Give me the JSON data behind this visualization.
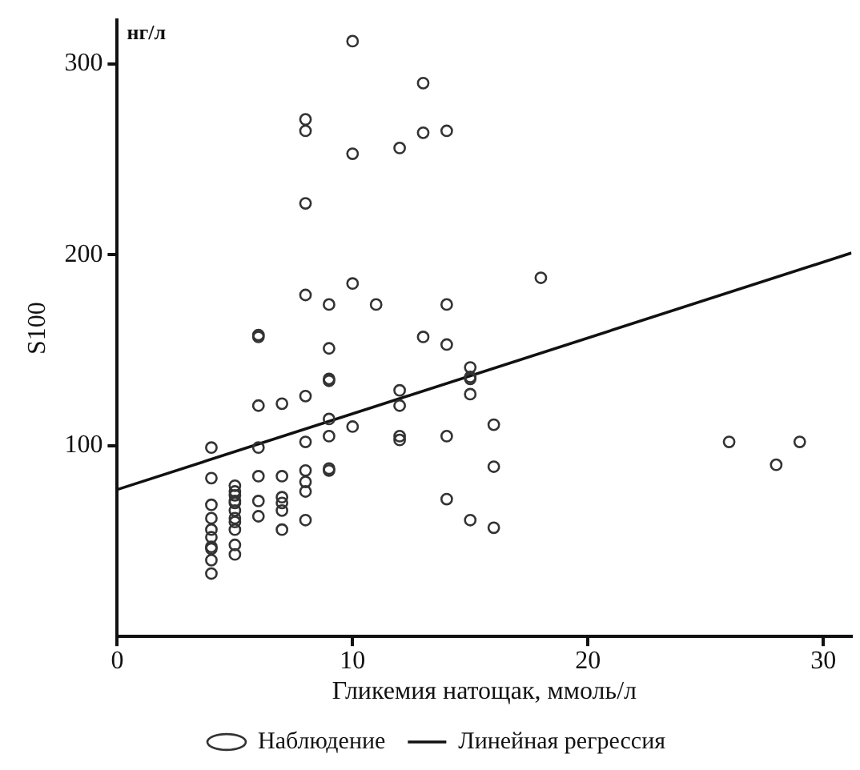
{
  "chart_data": {
    "type": "scatter",
    "xlabel": "Гликемия натощак, ммоль/л",
    "ylabel": "S100",
    "annotations": [
      "нг/л"
    ],
    "xlim": [
      0,
      31.2
    ],
    "xticks": [
      0,
      10,
      20,
      30
    ],
    "ylim": [
      0,
      323
    ],
    "yticks": [
      100,
      200,
      300
    ],
    "grid": false,
    "legend": "bottom",
    "line_style": "solid",
    "series": [
      {
        "name": "Наблюдение",
        "type": "scatter",
        "marker": "circle",
        "color": "#333333",
        "x": [
          10,
          13,
          8,
          8,
          13,
          10,
          12,
          8,
          8,
          9,
          10,
          11,
          6,
          6,
          9,
          13,
          14,
          18,
          14,
          14,
          15,
          15,
          15,
          15,
          16,
          14,
          16,
          14,
          15,
          16,
          26,
          28,
          29,
          9,
          9,
          12,
          12,
          6,
          7,
          8,
          9,
          10,
          12,
          12,
          4,
          6,
          8,
          9,
          9,
          9,
          4,
          6,
          7,
          8,
          8,
          8,
          8,
          6,
          6,
          7,
          7,
          7,
          7,
          4,
          4,
          4,
          4,
          4,
          4,
          4,
          4,
          5,
          5,
          5,
          5,
          5,
          5,
          5,
          5,
          5,
          5,
          5
        ],
        "values": [
          312,
          290,
          271,
          265,
          264,
          253,
          256,
          227,
          179,
          174,
          185,
          174,
          158,
          157,
          151,
          157,
          265,
          188,
          174,
          153,
          141,
          136,
          135,
          127,
          111,
          105,
          89,
          72,
          61,
          57,
          102,
          90,
          102,
          135,
          134,
          129,
          121,
          121,
          122,
          126,
          114,
          110,
          105,
          103,
          99,
          99,
          102,
          105,
          88,
          87,
          83,
          84,
          84,
          87,
          81,
          76,
          61,
          71,
          63,
          73,
          70,
          66,
          56,
          69,
          62,
          56,
          52,
          47,
          46,
          40,
          33,
          79,
          76,
          74,
          71,
          70,
          66,
          62,
          60,
          56,
          48,
          43
        ]
      },
      {
        "name": "Линейная регрессия",
        "type": "line",
        "marker": "none",
        "color": "#111111",
        "x": [
          0,
          31.2
        ],
        "values": [
          77,
          201
        ]
      }
    ]
  }
}
